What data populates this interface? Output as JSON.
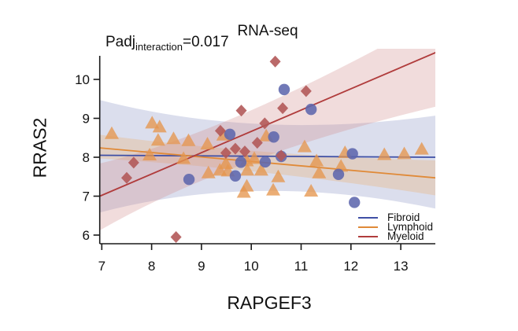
{
  "title_bar": {
    "title": "RNA-seq"
  },
  "annotation": {
    "prefix": "Padj",
    "subscript": "interaction",
    "suffix": "=0.017"
  },
  "chart_data": {
    "type": "scatter",
    "title": "RNA-seq",
    "xlabel": "RAPGEF3",
    "ylabel": "RRAS2",
    "xlim": [
      6.96,
      13.7
    ],
    "ylim": [
      5.78,
      10.6
    ],
    "x_ticks": [
      7,
      8,
      9,
      10,
      11,
      12,
      13
    ],
    "y_ticks": [
      6,
      7,
      8,
      9,
      10
    ],
    "grid": false,
    "legend_position": "bottom-right",
    "annotation_text": "Padj interaction = 0.017",
    "axis_color": "#1a1a1a",
    "series": [
      {
        "name": "Fibroid",
        "marker": "circle",
        "point_color": "#5D67AD",
        "line_color": "#3E4FA5",
        "band_color": "#8F97C6",
        "band_opacity": 0.32,
        "points": [
          [
            10.66,
            9.74
          ],
          [
            11.2,
            9.23
          ],
          [
            9.57,
            8.59
          ],
          [
            10.45,
            8.52
          ],
          [
            10.6,
            8.02
          ],
          [
            9.79,
            7.87
          ],
          [
            10.28,
            7.88
          ],
          [
            9.68,
            7.52
          ],
          [
            8.75,
            7.43
          ],
          [
            11.75,
            7.56
          ],
          [
            12.03,
            8.09
          ],
          [
            12.07,
            6.84
          ]
        ],
        "regression": {
          "x": [
            6.96,
            13.7
          ],
          "y": [
            8.05,
            8.0
          ]
        },
        "band": [
          [
            6.96,
            9.47
          ],
          [
            10.1,
            8.43
          ],
          [
            13.7,
            9.07
          ],
          [
            13.7,
            6.68
          ],
          [
            10.1,
            7.64
          ],
          [
            6.96,
            6.58
          ]
        ]
      },
      {
        "name": "Lymphoid",
        "marker": "triangle",
        "point_color": "#E6964E",
        "line_color": "#E08A38",
        "band_color": "#EBAC6B",
        "band_opacity": 0.3,
        "points": [
          [
            7.2,
            8.6
          ],
          [
            8.01,
            8.87
          ],
          [
            8.16,
            8.77
          ],
          [
            8.13,
            8.43
          ],
          [
            7.96,
            8.05
          ],
          [
            8.44,
            8.47
          ],
          [
            8.74,
            8.42
          ],
          [
            8.64,
            7.96
          ],
          [
            9.12,
            8.33
          ],
          [
            9.44,
            8.56
          ],
          [
            9.49,
            7.83
          ],
          [
            9.37,
            7.66
          ],
          [
            9.14,
            7.59
          ],
          [
            9.53,
            7.64
          ],
          [
            9.91,
            7.9
          ],
          [
            10.06,
            7.96
          ],
          [
            9.92,
            7.66
          ],
          [
            10.2,
            7.66
          ],
          [
            9.91,
            7.25
          ],
          [
            9.85,
            7.09
          ],
          [
            10.44,
            7.15
          ],
          [
            10.54,
            7.49
          ],
          [
            10.3,
            8.54
          ],
          [
            11.07,
            8.26
          ],
          [
            11.31,
            7.9
          ],
          [
            11.36,
            7.59
          ],
          [
            11.2,
            7.12
          ],
          [
            11.8,
            7.76
          ],
          [
            11.88,
            8.11
          ],
          [
            12.67,
            8.06
          ],
          [
            13.07,
            8.08
          ],
          [
            13.42,
            8.2
          ]
        ],
        "regression": {
          "x": [
            6.96,
            13.7
          ],
          "y": [
            8.24,
            7.47
          ]
        },
        "band": [
          [
            6.96,
            8.58
          ],
          [
            10.3,
            8.02
          ],
          [
            13.7,
            7.92
          ],
          [
            13.7,
            7.02
          ],
          [
            10.3,
            7.7
          ],
          [
            6.96,
            7.97
          ]
        ]
      },
      {
        "name": "Myeloid",
        "marker": "diamond",
        "point_color": "#B25959",
        "line_color": "#B03C3C",
        "band_color": "#D08A8A",
        "band_opacity": 0.3,
        "points": [
          [
            10.48,
            10.46
          ],
          [
            11.1,
            9.7
          ],
          [
            10.63,
            9.26
          ],
          [
            9.8,
            9.2
          ],
          [
            10.27,
            8.87
          ],
          [
            9.38,
            8.68
          ],
          [
            10.12,
            8.37
          ],
          [
            9.68,
            8.22
          ],
          [
            9.87,
            8.15
          ],
          [
            9.49,
            8.11
          ],
          [
            10.6,
            8.04
          ],
          [
            7.64,
            7.86
          ],
          [
            7.5,
            7.47
          ],
          [
            8.49,
            5.95
          ]
        ],
        "regression": {
          "x": [
            6.96,
            13.7
          ],
          "y": [
            7.0,
            10.69
          ]
        },
        "band": [
          [
            6.96,
            7.84
          ],
          [
            9.5,
            8.6
          ],
          [
            13.7,
            11.6
          ],
          [
            13.7,
            9.3
          ],
          [
            9.5,
            8.0
          ],
          [
            6.96,
            6.12
          ]
        ]
      }
    ]
  }
}
